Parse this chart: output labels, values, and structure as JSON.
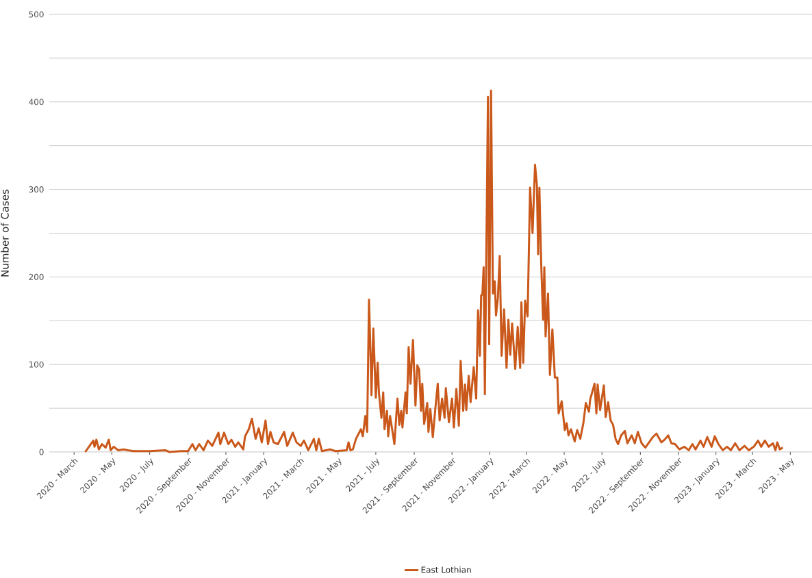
{
  "chart_data": {
    "type": "line",
    "ylabel": "Number of Cases",
    "xlim": [
      "2020-01-21",
      "2023-06-05"
    ],
    "xticks": [
      {
        "value": "2020-03",
        "label": "2020 - March"
      },
      {
        "value": "2020-05",
        "label": "2020 - May"
      },
      {
        "value": "2020-07",
        "label": "2020 - July"
      },
      {
        "value": "2020-09",
        "label": "2020 - September"
      },
      {
        "value": "2020-11",
        "label": "2020 - November"
      },
      {
        "value": "2021-01",
        "label": "2021 - January"
      },
      {
        "value": "2021-03",
        "label": "2021 - March"
      },
      {
        "value": "2021-05",
        "label": "2021 - May"
      },
      {
        "value": "2021-07",
        "label": "2021 - July"
      },
      {
        "value": "2021-09",
        "label": "2021 - September"
      },
      {
        "value": "2021-11",
        "label": "2021 - November"
      },
      {
        "value": "2022-01",
        "label": "2022 - January"
      },
      {
        "value": "2022-03",
        "label": "2022 - March"
      },
      {
        "value": "2022-05",
        "label": "2022 - May"
      },
      {
        "value": "2022-07",
        "label": "2022 - July"
      },
      {
        "value": "2022-09",
        "label": "2022 - September"
      },
      {
        "value": "2022-11",
        "label": "2022 - November"
      },
      {
        "value": "2023-01",
        "label": "2023 - January"
      },
      {
        "value": "2023-03",
        "label": "2023 - March"
      },
      {
        "value": "2023-05",
        "label": "2023 - May"
      }
    ],
    "ylim": [
      0,
      500
    ],
    "yticks": [
      0,
      {
        "value": 50,
        "label": null
      },
      100,
      {
        "value": 150,
        "label": null
      },
      200,
      {
        "value": 250,
        "label": null
      },
      300,
      {
        "value": 350,
        "label": null
      },
      400,
      {
        "value": 450,
        "label": null
      },
      500
    ],
    "grid": "y",
    "legend": "bottom",
    "line_style": "solid",
    "series": [
      {
        "name": "East Lothian",
        "color": "#c9581a",
        "x": [
          "2020-03-19",
          "2020-03-26",
          "2020-04-01",
          "2020-04-03",
          "2020-04-06",
          "2020-04-10",
          "2020-04-15",
          "2020-04-21",
          "2020-04-26",
          "2020-04-29",
          "2020-05-04",
          "2020-05-11",
          "2020-05-20",
          "2020-05-27",
          "2020-06-05",
          "2020-07-01",
          "2020-07-26",
          "2020-08-02",
          "2020-08-20",
          "2020-09-01",
          "2020-09-08",
          "2020-09-13",
          "2020-09-19",
          "2020-09-26",
          "2020-10-03",
          "2020-10-10",
          "2020-10-20",
          "2020-10-23",
          "2020-10-29",
          "2020-11-05",
          "2020-11-10",
          "2020-11-16",
          "2020-11-21",
          "2020-11-29",
          "2020-12-02",
          "2020-12-08",
          "2020-12-13",
          "2020-12-19",
          "2020-12-24",
          "2020-12-29",
          "2021-01-04",
          "2021-01-08",
          "2021-01-12",
          "2021-01-17",
          "2021-01-24",
          "2021-02-03",
          "2021-02-08",
          "2021-02-17",
          "2021-02-23",
          "2021-03-02",
          "2021-03-07",
          "2021-03-14",
          "2021-03-23",
          "2021-03-27",
          "2021-03-31",
          "2021-04-05",
          "2021-04-18",
          "2021-04-27",
          "2021-05-15",
          "2021-05-18",
          "2021-05-21",
          "2021-05-25",
          "2021-05-30",
          "2021-06-07",
          "2021-06-10",
          "2021-06-14",
          "2021-06-17",
          "2021-06-20",
          "2021-06-23",
          "2021-06-24",
          "2021-06-27",
          "2021-07-01",
          "2021-07-04",
          "2021-07-06",
          "2021-07-10",
          "2021-07-13",
          "2021-07-15",
          "2021-07-19",
          "2021-07-21",
          "2021-07-24",
          "2021-07-28",
          "2021-07-31",
          "2021-08-03",
          "2021-08-05",
          "2021-08-08",
          "2021-08-11",
          "2021-08-13",
          "2021-08-18",
          "2021-08-20",
          "2021-08-23",
          "2021-08-26",
          "2021-08-30",
          "2021-09-03",
          "2021-09-06",
          "2021-09-09",
          "2021-09-12",
          "2021-09-14",
          "2021-09-17",
          "2021-09-22",
          "2021-09-24",
          "2021-09-27",
          "2021-10-01",
          "2021-10-05",
          "2021-10-09",
          "2021-10-12",
          "2021-10-16",
          "2021-10-20",
          "2021-10-22",
          "2021-10-27",
          "2021-11-01",
          "2021-11-04",
          "2021-11-08",
          "2021-11-12",
          "2021-11-15",
          "2021-11-19",
          "2021-11-22",
          "2021-11-24",
          "2021-11-28",
          "2021-12-01",
          "2021-12-06",
          "2021-12-10",
          "2021-12-13",
          "2021-12-16",
          "2021-12-18",
          "2021-12-20",
          "2021-12-22",
          "2021-12-24",
          "2021-12-29",
          "2021-12-31",
          "2022-01-03",
          "2022-01-06",
          "2022-01-09",
          "2022-01-11",
          "2022-01-14",
          "2022-01-17",
          "2022-01-20",
          "2022-01-24",
          "2022-01-28",
          "2022-01-31",
          "2022-02-03",
          "2022-02-06",
          "2022-02-11",
          "2022-02-15",
          "2022-02-19",
          "2022-02-21",
          "2022-02-24",
          "2022-02-27",
          "2022-03-03",
          "2022-03-07",
          "2022-03-11",
          "2022-03-15",
          "2022-03-18",
          "2022-03-20",
          "2022-03-22",
          "2022-03-25",
          "2022-03-28",
          "2022-03-30",
          "2022-04-01",
          "2022-04-05",
          "2022-04-08",
          "2022-04-12",
          "2022-04-16",
          "2022-04-20",
          "2022-04-22",
          "2022-04-27",
          "2022-05-02",
          "2022-05-05",
          "2022-05-08",
          "2022-05-12",
          "2022-05-18",
          "2022-05-22",
          "2022-05-27",
          "2022-06-01",
          "2022-06-05",
          "2022-06-10",
          "2022-06-12",
          "2022-06-19",
          "2022-06-22",
          "2022-06-24",
          "2022-06-28",
          "2022-07-04",
          "2022-07-07",
          "2022-07-11",
          "2022-07-15",
          "2022-07-19",
          "2022-07-23",
          "2022-07-27",
          "2022-08-01",
          "2022-08-07",
          "2022-08-11",
          "2022-08-18",
          "2022-08-23",
          "2022-08-28",
          "2022-09-03",
          "2022-09-09",
          "2022-09-15",
          "2022-09-21",
          "2022-09-27",
          "2022-10-05",
          "2022-10-10",
          "2022-10-16",
          "2022-10-21",
          "2022-10-27",
          "2022-11-03",
          "2022-11-11",
          "2022-11-18",
          "2022-11-24",
          "2022-11-29",
          "2022-12-07",
          "2022-12-12",
          "2022-12-18",
          "2022-12-25",
          "2022-12-30",
          "2023-01-05",
          "2023-01-12",
          "2023-01-19",
          "2023-01-25",
          "2023-02-01",
          "2023-02-08",
          "2023-02-16",
          "2023-02-23",
          "2023-03-03",
          "2023-03-10",
          "2023-03-15",
          "2023-03-21",
          "2023-03-27",
          "2023-04-03",
          "2023-04-07",
          "2023-04-10",
          "2023-04-14",
          "2023-04-19"
        ],
        "values": [
          0,
          7,
          13,
          6,
          14,
          3,
          9,
          5,
          14,
          2,
          6,
          2,
          3,
          2,
          1,
          1,
          2,
          0,
          1,
          1,
          9,
          2,
          9,
          2,
          13,
          7,
          22,
          9,
          22,
          9,
          14,
          6,
          11,
          3,
          18,
          26,
          38,
          15,
          27,
          11,
          36,
          9,
          23,
          11,
          9,
          23,
          7,
          22,
          11,
          7,
          13,
          2,
          15,
          2,
          15,
          1,
          3,
          1,
          2,
          11,
          2,
          3,
          15,
          26,
          18,
          41,
          23,
          174,
          99,
          65,
          141,
          62,
          102,
          68,
          39,
          68,
          26,
          47,
          18,
          41,
          23,
          9,
          41,
          61,
          31,
          47,
          28,
          68,
          44,
          120,
          78,
          128,
          53,
          99,
          94,
          47,
          78,
          32,
          56,
          23,
          49,
          17,
          49,
          78,
          36,
          61,
          39,
          73,
          34,
          61,
          28,
          72,
          30,
          104,
          47,
          77,
          48,
          87,
          57,
          97,
          61,
          162,
          110,
          179,
          180,
          211,
          66,
          406,
          123,
          413,
          181,
          195,
          156,
          176,
          224,
          110,
          163,
          96,
          151,
          111,
          147,
          95,
          143,
          96,
          171,
          102,
          173,
          155,
          302,
          250,
          328,
          305,
          226,
          302,
          214,
          151,
          211,
          132,
          181,
          88,
          140,
          85,
          85,
          44,
          58,
          25,
          33,
          19,
          26,
          12,
          25,
          15,
          33,
          56,
          46,
          60,
          78,
          44,
          77,
          48,
          76,
          40,
          57,
          36,
          31,
          15,
          9,
          19,
          24,
          10,
          19,
          10,
          23,
          10,
          5,
          11,
          17,
          21,
          11,
          14,
          19,
          10,
          9,
          3,
          6,
          2,
          9,
          3,
          13,
          6,
          17,
          6,
          18,
          9,
          2,
          6,
          2,
          10,
          2,
          7,
          2,
          6,
          13,
          6,
          13,
          6,
          10,
          2,
          11,
          3,
          5
        ]
      }
    ]
  }
}
